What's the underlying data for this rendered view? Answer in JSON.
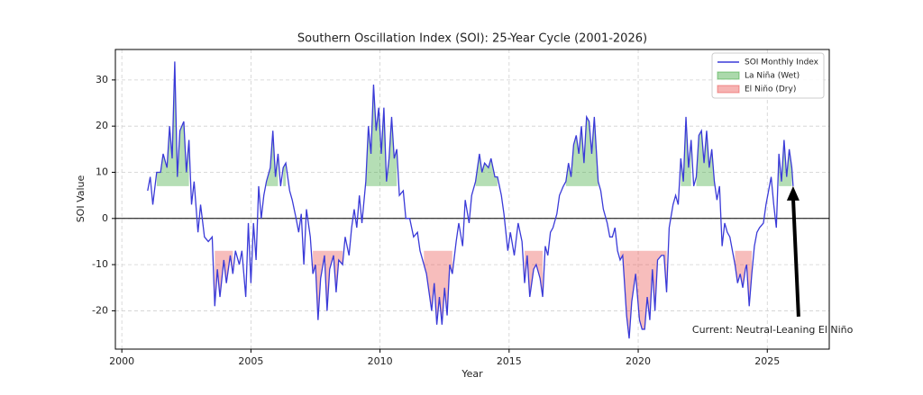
{
  "chart_data": {
    "type": "line",
    "title": "Southern Oscillation Index (SOI): 25-Year Cycle (2001-2026)",
    "xlabel": "Year",
    "ylabel": "SOI Value",
    "xlim": [
      1999.75,
      2027.4
    ],
    "ylim": [
      -28.3,
      36.6
    ],
    "xticks": [
      2000,
      2005,
      2010,
      2015,
      2020,
      2025
    ],
    "yticks": [
      -20,
      -10,
      0,
      10,
      20,
      30
    ],
    "grid": true,
    "hline": 0,
    "legend": "upper right",
    "x": [
      2001.0,
      2001.1,
      2001.2,
      2001.35,
      2001.5,
      2001.6,
      2001.75,
      2001.85,
      2001.95,
      2002.05,
      2002.15,
      2002.25,
      2002.4,
      2002.5,
      2002.6,
      2002.7,
      2002.8,
      2002.95,
      2003.05,
      2003.2,
      2003.35,
      2003.5,
      2003.6,
      2003.7,
      2003.8,
      2003.95,
      2004.05,
      2004.2,
      2004.3,
      2004.4,
      2004.55,
      2004.65,
      2004.8,
      2004.9,
      2005.0,
      2005.1,
      2005.2,
      2005.3,
      2005.4,
      2005.5,
      2005.6,
      2005.75,
      2005.85,
      2005.95,
      2006.05,
      2006.15,
      2006.25,
      2006.35,
      2006.5,
      2006.6,
      2006.75,
      2006.85,
      2006.95,
      2007.05,
      2007.15,
      2007.3,
      2007.4,
      2007.5,
      2007.6,
      2007.7,
      2007.85,
      2007.95,
      2008.05,
      2008.2,
      2008.3,
      2008.4,
      2008.55,
      2008.65,
      2008.8,
      2008.9,
      2009.0,
      2009.1,
      2009.2,
      2009.3,
      2009.45,
      2009.55,
      2009.65,
      2009.75,
      2009.85,
      2009.95,
      2010.05,
      2010.15,
      2010.25,
      2010.35,
      2010.45,
      2010.55,
      2010.65,
      2010.75,
      2010.9,
      2011.0,
      2011.15,
      2011.3,
      2011.45,
      2011.55,
      2011.7,
      2011.8,
      2011.9,
      2012.0,
      2012.1,
      2012.2,
      2012.3,
      2012.4,
      2012.5,
      2012.6,
      2012.7,
      2012.8,
      2012.95,
      2013.05,
      2013.2,
      2013.3,
      2013.45,
      2013.55,
      2013.7,
      2013.85,
      2013.95,
      2014.05,
      2014.2,
      2014.3,
      2014.45,
      2014.55,
      2014.7,
      2014.8,
      2014.95,
      2015.05,
      2015.2,
      2015.35,
      2015.5,
      2015.6,
      2015.7,
      2015.8,
      2015.95,
      2016.05,
      2016.2,
      2016.3,
      2016.4,
      2016.5,
      2016.6,
      2016.7,
      2016.85,
      2016.95,
      2017.1,
      2017.2,
      2017.3,
      2017.4,
      2017.5,
      2017.6,
      2017.7,
      2017.8,
      2017.9,
      2018.0,
      2018.1,
      2018.2,
      2018.3,
      2018.45,
      2018.55,
      2018.65,
      2018.8,
      2018.9,
      2019.0,
      2019.1,
      2019.2,
      2019.3,
      2019.4,
      2019.55,
      2019.65,
      2019.75,
      2019.9,
      2020.05,
      2020.15,
      2020.25,
      2020.35,
      2020.45,
      2020.55,
      2020.65,
      2020.75,
      2020.9,
      2021.0,
      2021.1,
      2021.2,
      2021.35,
      2021.45,
      2021.55,
      2021.65,
      2021.75,
      2021.85,
      2021.95,
      2022.05,
      2022.15,
      2022.25,
      2022.35,
      2022.45,
      2022.55,
      2022.65,
      2022.75,
      2022.85,
      2022.95,
      2023.05,
      2023.15,
      2023.25,
      2023.35,
      2023.45,
      2023.55,
      2023.65,
      2023.75,
      2023.85,
      2023.95,
      2024.05,
      2024.15,
      2024.2,
      2024.3,
      2024.4,
      2024.5,
      2024.6,
      2024.7,
      2024.85,
      2024.95,
      2025.05,
      2025.15,
      2025.25,
      2025.35,
      2025.45,
      2025.55,
      2025.65,
      2025.75,
      2025.85,
      2025.95,
      2026.0
    ],
    "series": [
      {
        "name": "SOI Monthly Index",
        "color": "#3a3ad8",
        "values": [
          6,
          9,
          3,
          10,
          10,
          14,
          11,
          20,
          13,
          34,
          9,
          19,
          21,
          10,
          17,
          3,
          8,
          -3,
          3,
          -4,
          -5,
          -4,
          -19,
          -11,
          -17,
          -9,
          -14,
          -8,
          -12,
          -7,
          -10,
          -7,
          -17,
          -1,
          -14,
          -1,
          -9,
          7,
          0,
          5,
          8,
          11,
          19,
          9,
          14,
          7,
          11,
          12,
          6,
          4,
          0,
          -3,
          1,
          -10,
          2,
          -4,
          -12,
          -10,
          -22,
          -13,
          -8,
          -20,
          -11,
          -8,
          -16,
          -9,
          -10,
          -4,
          -8,
          -2,
          2,
          -2,
          5,
          -1,
          8,
          20,
          14,
          29,
          19,
          24,
          14,
          24,
          8,
          13,
          22,
          13,
          15,
          5,
          6,
          0,
          0,
          -4,
          -3,
          -7,
          -10,
          -12,
          -16,
          -20,
          -14,
          -23,
          -17,
          -23,
          -15,
          -21,
          -10,
          -12,
          -5,
          -1,
          -6,
          4,
          -1,
          5,
          8,
          14,
          10,
          12,
          11,
          13,
          9,
          9,
          5,
          1,
          -7,
          -3,
          -8,
          -1,
          -5,
          -14,
          -8,
          -17,
          -11,
          -10,
          -13,
          -17,
          -6,
          -8,
          -3,
          -2,
          1,
          5,
          7,
          8,
          12,
          9,
          16,
          18,
          14,
          20,
          12,
          22,
          21,
          14,
          22,
          8,
          6,
          2,
          -1,
          -4,
          -4,
          -2,
          -7,
          -9,
          -8,
          -21,
          -26,
          -18,
          -12,
          -22,
          -24,
          -24,
          -17,
          -22,
          -11,
          -20,
          -9,
          -8,
          -8,
          -16,
          -2,
          3,
          5,
          3,
          13,
          8,
          22,
          11,
          17,
          7,
          9,
          18,
          19,
          12,
          19,
          11,
          15,
          8,
          4,
          7,
          -6,
          -1,
          -3,
          -4,
          -7,
          -10,
          -14,
          -12,
          -15,
          -11,
          -10,
          -19,
          -12,
          -6,
          -3,
          -2,
          -1,
          3,
          6,
          9,
          3,
          -2,
          14,
          8,
          17,
          9,
          15,
          11,
          7
        ]
      },
      {
        "name": "La Niña (Wet)",
        "color": "#2ca02c",
        "threshold": 7,
        "side": "above"
      },
      {
        "name": "El Niño (Dry)",
        "color": "#e8423f",
        "threshold": -7,
        "side": "below"
      }
    ],
    "annotation": {
      "text": "Current: Neutral-Leaning El Niño",
      "xy": [
        2026.0,
        7
      ]
    }
  }
}
